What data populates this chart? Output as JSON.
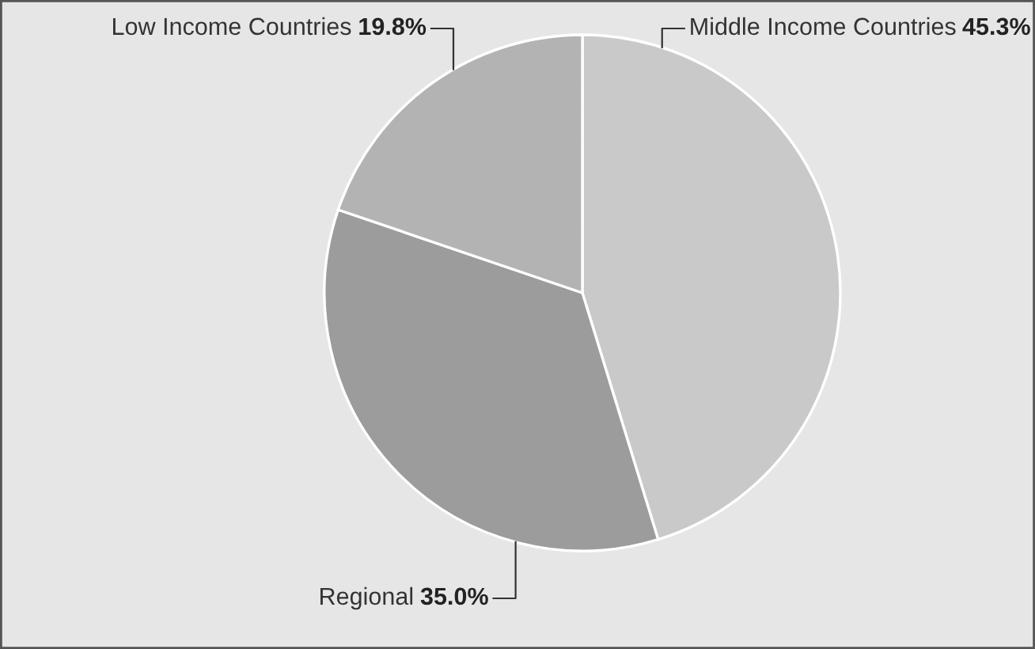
{
  "chart_data": {
    "type": "pie",
    "categories": [
      "Middle Income Countries",
      "Regional",
      "Low Income Countries"
    ],
    "values": [
      45.3,
      35.0,
      19.8
    ],
    "value_labels": [
      "45.3%",
      "35.0%",
      "19.8%"
    ],
    "colors": [
      "#c9c9c9",
      "#9c9c9c",
      "#b3b3b3"
    ],
    "legend": false
  }
}
